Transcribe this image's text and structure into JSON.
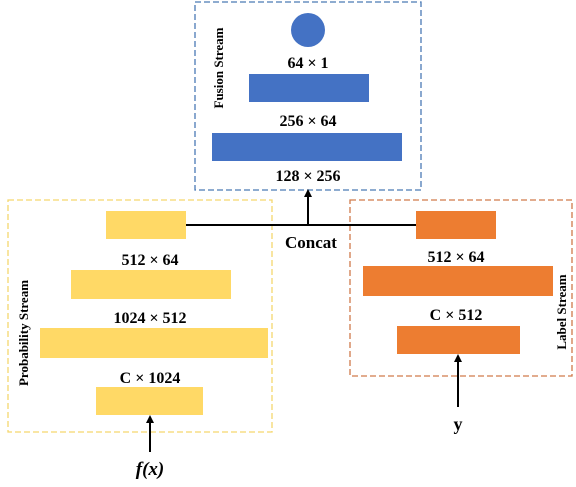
{
  "fusion_stream": {
    "title": "Fusion Stream",
    "dims": [
      "64 × 1",
      "256 × 64",
      "128 × 256"
    ],
    "box_color": "#4a7ab5",
    "fill_color": "#4472c4"
  },
  "probability_stream": {
    "title": "Probability Stream",
    "dims": [
      "512 × 64",
      "1024 × 512",
      "C × 1024"
    ],
    "input": "f(x)",
    "box_color": "#f5d76e",
    "fill_color": "#ffd966"
  },
  "label_stream": {
    "title": "Label Stream",
    "dims": [
      "512 × 64",
      "C × 512"
    ],
    "input": "y",
    "box_color": "#d07a4a",
    "fill_color": "#ed7d31"
  },
  "concat_label": "Concat"
}
